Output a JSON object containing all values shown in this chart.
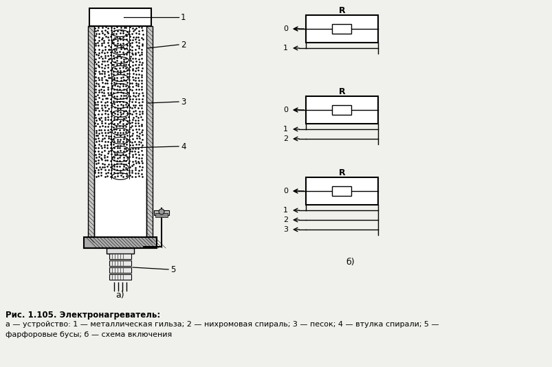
{
  "bg_color": "#f0f0ec",
  "title_text": "Рис. 1.105. Электронагреватель:",
  "caption_line1": "а — устройство: 1 — металлическая гильза; 2 — нихромовая спираль; 3 — песок; 4 — втулка спирали; 5 —",
  "caption_line2": "фарфоровые бусы; б — схема включения",
  "label_a": "а)",
  "label_b": "б)"
}
